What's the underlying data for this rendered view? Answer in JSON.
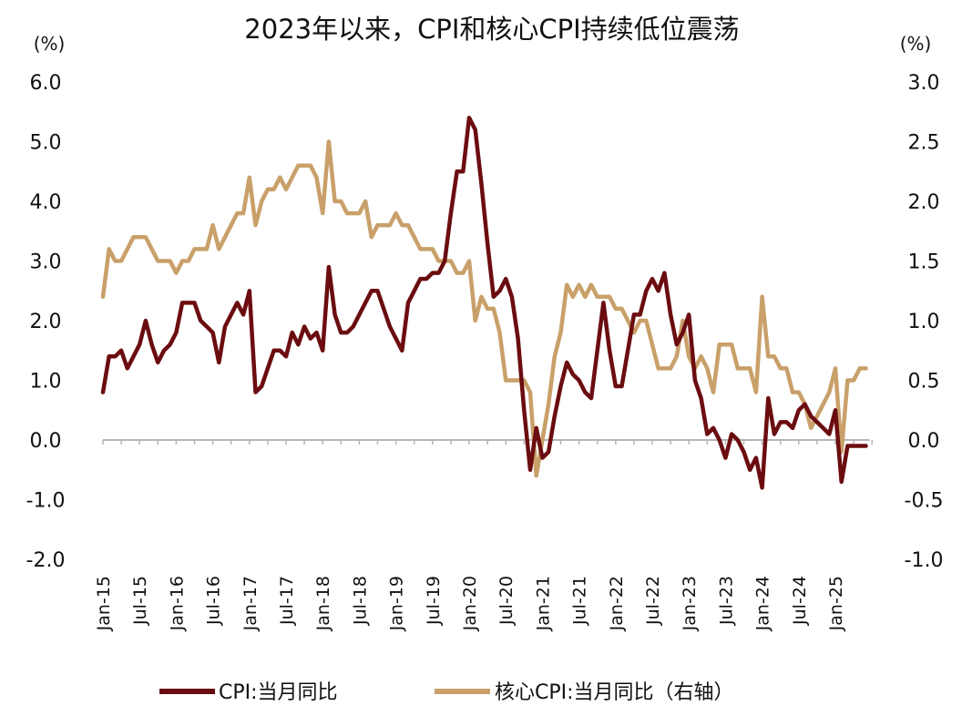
{
  "chart_data": {
    "type": "line",
    "title": "2023年以来，CPI和核心CPI持续低位震荡",
    "left_axis": {
      "unit": "(%)",
      "ylim": [
        -2.0,
        6.0
      ],
      "ticks": [
        "6.0",
        "5.0",
        "4.0",
        "3.0",
        "2.0",
        "1.0",
        "0.0",
        "-1.0",
        "-2.0"
      ],
      "tick_values": [
        6,
        5,
        4,
        3,
        2,
        1,
        0,
        -1,
        -2
      ]
    },
    "right_axis": {
      "unit": "(%)",
      "ylim": [
        -1.0,
        3.0
      ],
      "ticks": [
        "3.0",
        "2.5",
        "2.0",
        "1.5",
        "1.0",
        "0.5",
        "0.0",
        "-0.5",
        "-1.0"
      ],
      "tick_values": [
        3,
        2.5,
        2,
        1.5,
        1,
        0.5,
        0,
        -0.5,
        -1
      ]
    },
    "x_start": "Jan-15",
    "x_labels": [
      "Jan-15",
      "Jul-15",
      "Jan-16",
      "Jul-16",
      "Jan-17",
      "Jul-17",
      "Jan-18",
      "Jul-18",
      "Jan-19",
      "Jul-19",
      "Jan-20",
      "Jul-20",
      "Jan-21",
      "Jul-21",
      "Jan-22",
      "Jul-22",
      "Jan-23",
      "Jul-23",
      "Jan-24",
      "Jul-24",
      "Jan-25"
    ],
    "series": [
      {
        "name": "CPI:当月同比",
        "axis": "left",
        "color": "#6b0d10",
        "values": [
          0.8,
          1.4,
          1.4,
          1.5,
          1.2,
          1.4,
          1.6,
          2.0,
          1.6,
          1.3,
          1.5,
          1.6,
          1.8,
          2.3,
          2.3,
          2.3,
          2.0,
          1.9,
          1.8,
          1.3,
          1.9,
          2.1,
          2.3,
          2.1,
          2.5,
          0.8,
          0.9,
          1.2,
          1.5,
          1.5,
          1.4,
          1.8,
          1.6,
          1.9,
          1.7,
          1.8,
          1.5,
          2.9,
          2.1,
          1.8,
          1.8,
          1.9,
          2.1,
          2.3,
          2.5,
          2.5,
          2.2,
          1.9,
          1.7,
          1.5,
          2.3,
          2.5,
          2.7,
          2.7,
          2.8,
          2.8,
          3.0,
          3.8,
          4.5,
          4.5,
          5.4,
          5.2,
          4.3,
          3.3,
          2.4,
          2.5,
          2.7,
          2.4,
          1.7,
          0.5,
          -0.5,
          0.2,
          -0.3,
          -0.2,
          0.4,
          0.9,
          1.3,
          1.1,
          1.0,
          0.8,
          0.7,
          1.5,
          2.3,
          1.5,
          0.9,
          0.9,
          1.5,
          2.1,
          2.1,
          2.5,
          2.7,
          2.5,
          2.8,
          2.1,
          1.6,
          1.8,
          2.1,
          1.0,
          0.7,
          0.1,
          0.2,
          0.0,
          -0.3,
          0.1,
          0.0,
          -0.2,
          -0.5,
          -0.3,
          -0.8,
          0.7,
          0.1,
          0.3,
          0.3,
          0.2,
          0.5,
          0.6,
          0.4,
          0.3,
          0.2,
          0.1,
          0.5,
          -0.7,
          -0.1,
          -0.1,
          -0.1,
          -0.1
        ]
      },
      {
        "name": "核心CPI:当月同比（右轴）",
        "axis": "right",
        "color": "#c9a06a",
        "values": [
          1.2,
          1.6,
          1.5,
          1.5,
          1.6,
          1.7,
          1.7,
          1.7,
          1.6,
          1.5,
          1.5,
          1.5,
          1.4,
          1.5,
          1.5,
          1.6,
          1.6,
          1.6,
          1.8,
          1.6,
          1.7,
          1.8,
          1.9,
          1.9,
          2.2,
          1.8,
          2.0,
          2.1,
          2.1,
          2.2,
          2.1,
          2.2,
          2.3,
          2.3,
          2.3,
          2.2,
          1.9,
          2.5,
          2.0,
          2.0,
          1.9,
          1.9,
          1.9,
          2.0,
          1.7,
          1.8,
          1.8,
          1.8,
          1.9,
          1.8,
          1.8,
          1.7,
          1.6,
          1.6,
          1.6,
          1.5,
          1.5,
          1.5,
          1.4,
          1.4,
          1.5,
          1.0,
          1.2,
          1.1,
          1.1,
          0.9,
          0.5,
          0.5,
          0.5,
          0.5,
          0.4,
          -0.3,
          0.0,
          0.3,
          0.7,
          0.9,
          1.3,
          1.2,
          1.3,
          1.2,
          1.3,
          1.2,
          1.2,
          1.2,
          1.1,
          1.1,
          1.0,
          0.9,
          1.0,
          1.0,
          0.8,
          0.6,
          0.6,
          0.6,
          0.7,
          1.0,
          0.7,
          0.6,
          0.7,
          0.6,
          0.4,
          0.8,
          0.8,
          0.8,
          0.6,
          0.6,
          0.6,
          0.4,
          1.2,
          0.7,
          0.7,
          0.6,
          0.6,
          0.4,
          0.4,
          0.3,
          0.1,
          0.2,
          0.3,
          0.4,
          0.6,
          -0.1,
          0.5,
          0.5,
          0.6,
          0.6
        ]
      }
    ]
  }
}
